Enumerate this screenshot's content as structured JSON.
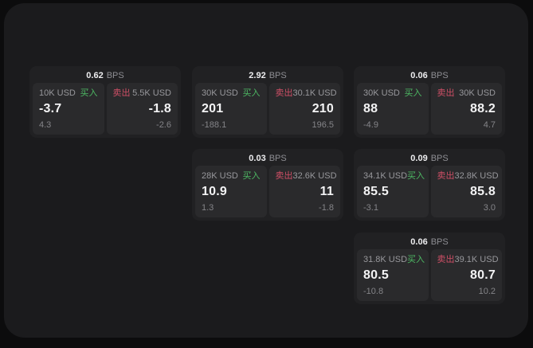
{
  "labels": {
    "bps": "BPS",
    "buy": "买入",
    "sell": "卖出"
  },
  "colors": {
    "buy": "#4db863",
    "sell": "#cf4f66",
    "page_bg": "#1b1b1d",
    "outer_bg": "#0c0c0d",
    "card_bg": "#212123",
    "panel_bg": "#2a2a2c"
  },
  "cards": [
    {
      "col": 1,
      "row": 1,
      "bps": "0.62",
      "buy_amount": "10K USD",
      "buy_value": "-3.7",
      "buy_sub": "4.3",
      "sell_amount": "5.5K USD",
      "sell_value": "-1.8",
      "sell_sub": "-2.6"
    },
    {
      "col": 2,
      "row": 1,
      "bps": "2.92",
      "buy_amount": "30K USD",
      "buy_value": "201",
      "buy_sub": "-188.1",
      "sell_amount": "30.1K USD",
      "sell_value": "210",
      "sell_sub": "196.5"
    },
    {
      "col": 2,
      "row": 2,
      "bps": "0.03",
      "buy_amount": "28K USD",
      "buy_value": "10.9",
      "buy_sub": "1.3",
      "sell_amount": "32.6K USD",
      "sell_value": "11",
      "sell_sub": "-1.8"
    },
    {
      "col": 3,
      "row": 1,
      "bps": "0.06",
      "buy_amount": "30K USD",
      "buy_value": "88",
      "buy_sub": "-4.9",
      "sell_amount": "30K USD",
      "sell_value": "88.2",
      "sell_sub": "4.7"
    },
    {
      "col": 3,
      "row": 2,
      "bps": "0.09",
      "buy_amount": "34.1K USD",
      "buy_value": "85.5",
      "buy_sub": "-3.1",
      "sell_amount": "32.8K USD",
      "sell_value": "85.8",
      "sell_sub": "3.0"
    },
    {
      "col": 3,
      "row": 3,
      "bps": "0.06",
      "buy_amount": "31.8K USD",
      "buy_value": "80.5",
      "buy_sub": "-10.8",
      "sell_amount": "39.1K USD",
      "sell_value": "80.7",
      "sell_sub": "10.2"
    }
  ]
}
